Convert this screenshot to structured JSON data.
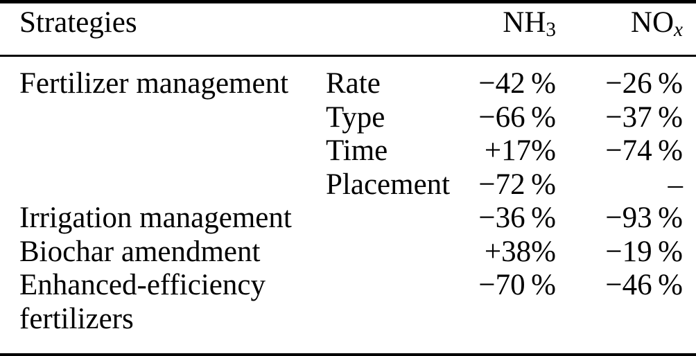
{
  "colors": {
    "text": "#000000",
    "background": "#ffffff",
    "rule": "#000000"
  },
  "table": {
    "header": {
      "strategies": "Strategies",
      "nh3_main": "NH",
      "nh3_sub": "3",
      "nox_main": "NO",
      "nox_sub": "x"
    },
    "rows": [
      {
        "strategy": "Fertilizer management",
        "substrategy": "Rate",
        "nh3": "−42 %",
        "nox": "−26 %"
      },
      {
        "strategy": "",
        "substrategy": "Type",
        "nh3": "−66 %",
        "nox": "−37 %"
      },
      {
        "strategy": "",
        "substrategy": "Time",
        "nh3": "+17%",
        "nox": "−74 %"
      },
      {
        "strategy": "",
        "substrategy": "Placement",
        "nh3": "−72 %",
        "nox": "–"
      },
      {
        "strategy": "Irrigation management",
        "substrategy": "",
        "nh3": "−36 %",
        "nox": "−93 %"
      },
      {
        "strategy": "Biochar amendment",
        "substrategy": "",
        "nh3": "+38%",
        "nox": "−19 %"
      },
      {
        "strategy": "Enhanced-efficiency fertilizers",
        "substrategy": "",
        "nh3": "−70 %",
        "nox": "−46 %"
      }
    ]
  }
}
